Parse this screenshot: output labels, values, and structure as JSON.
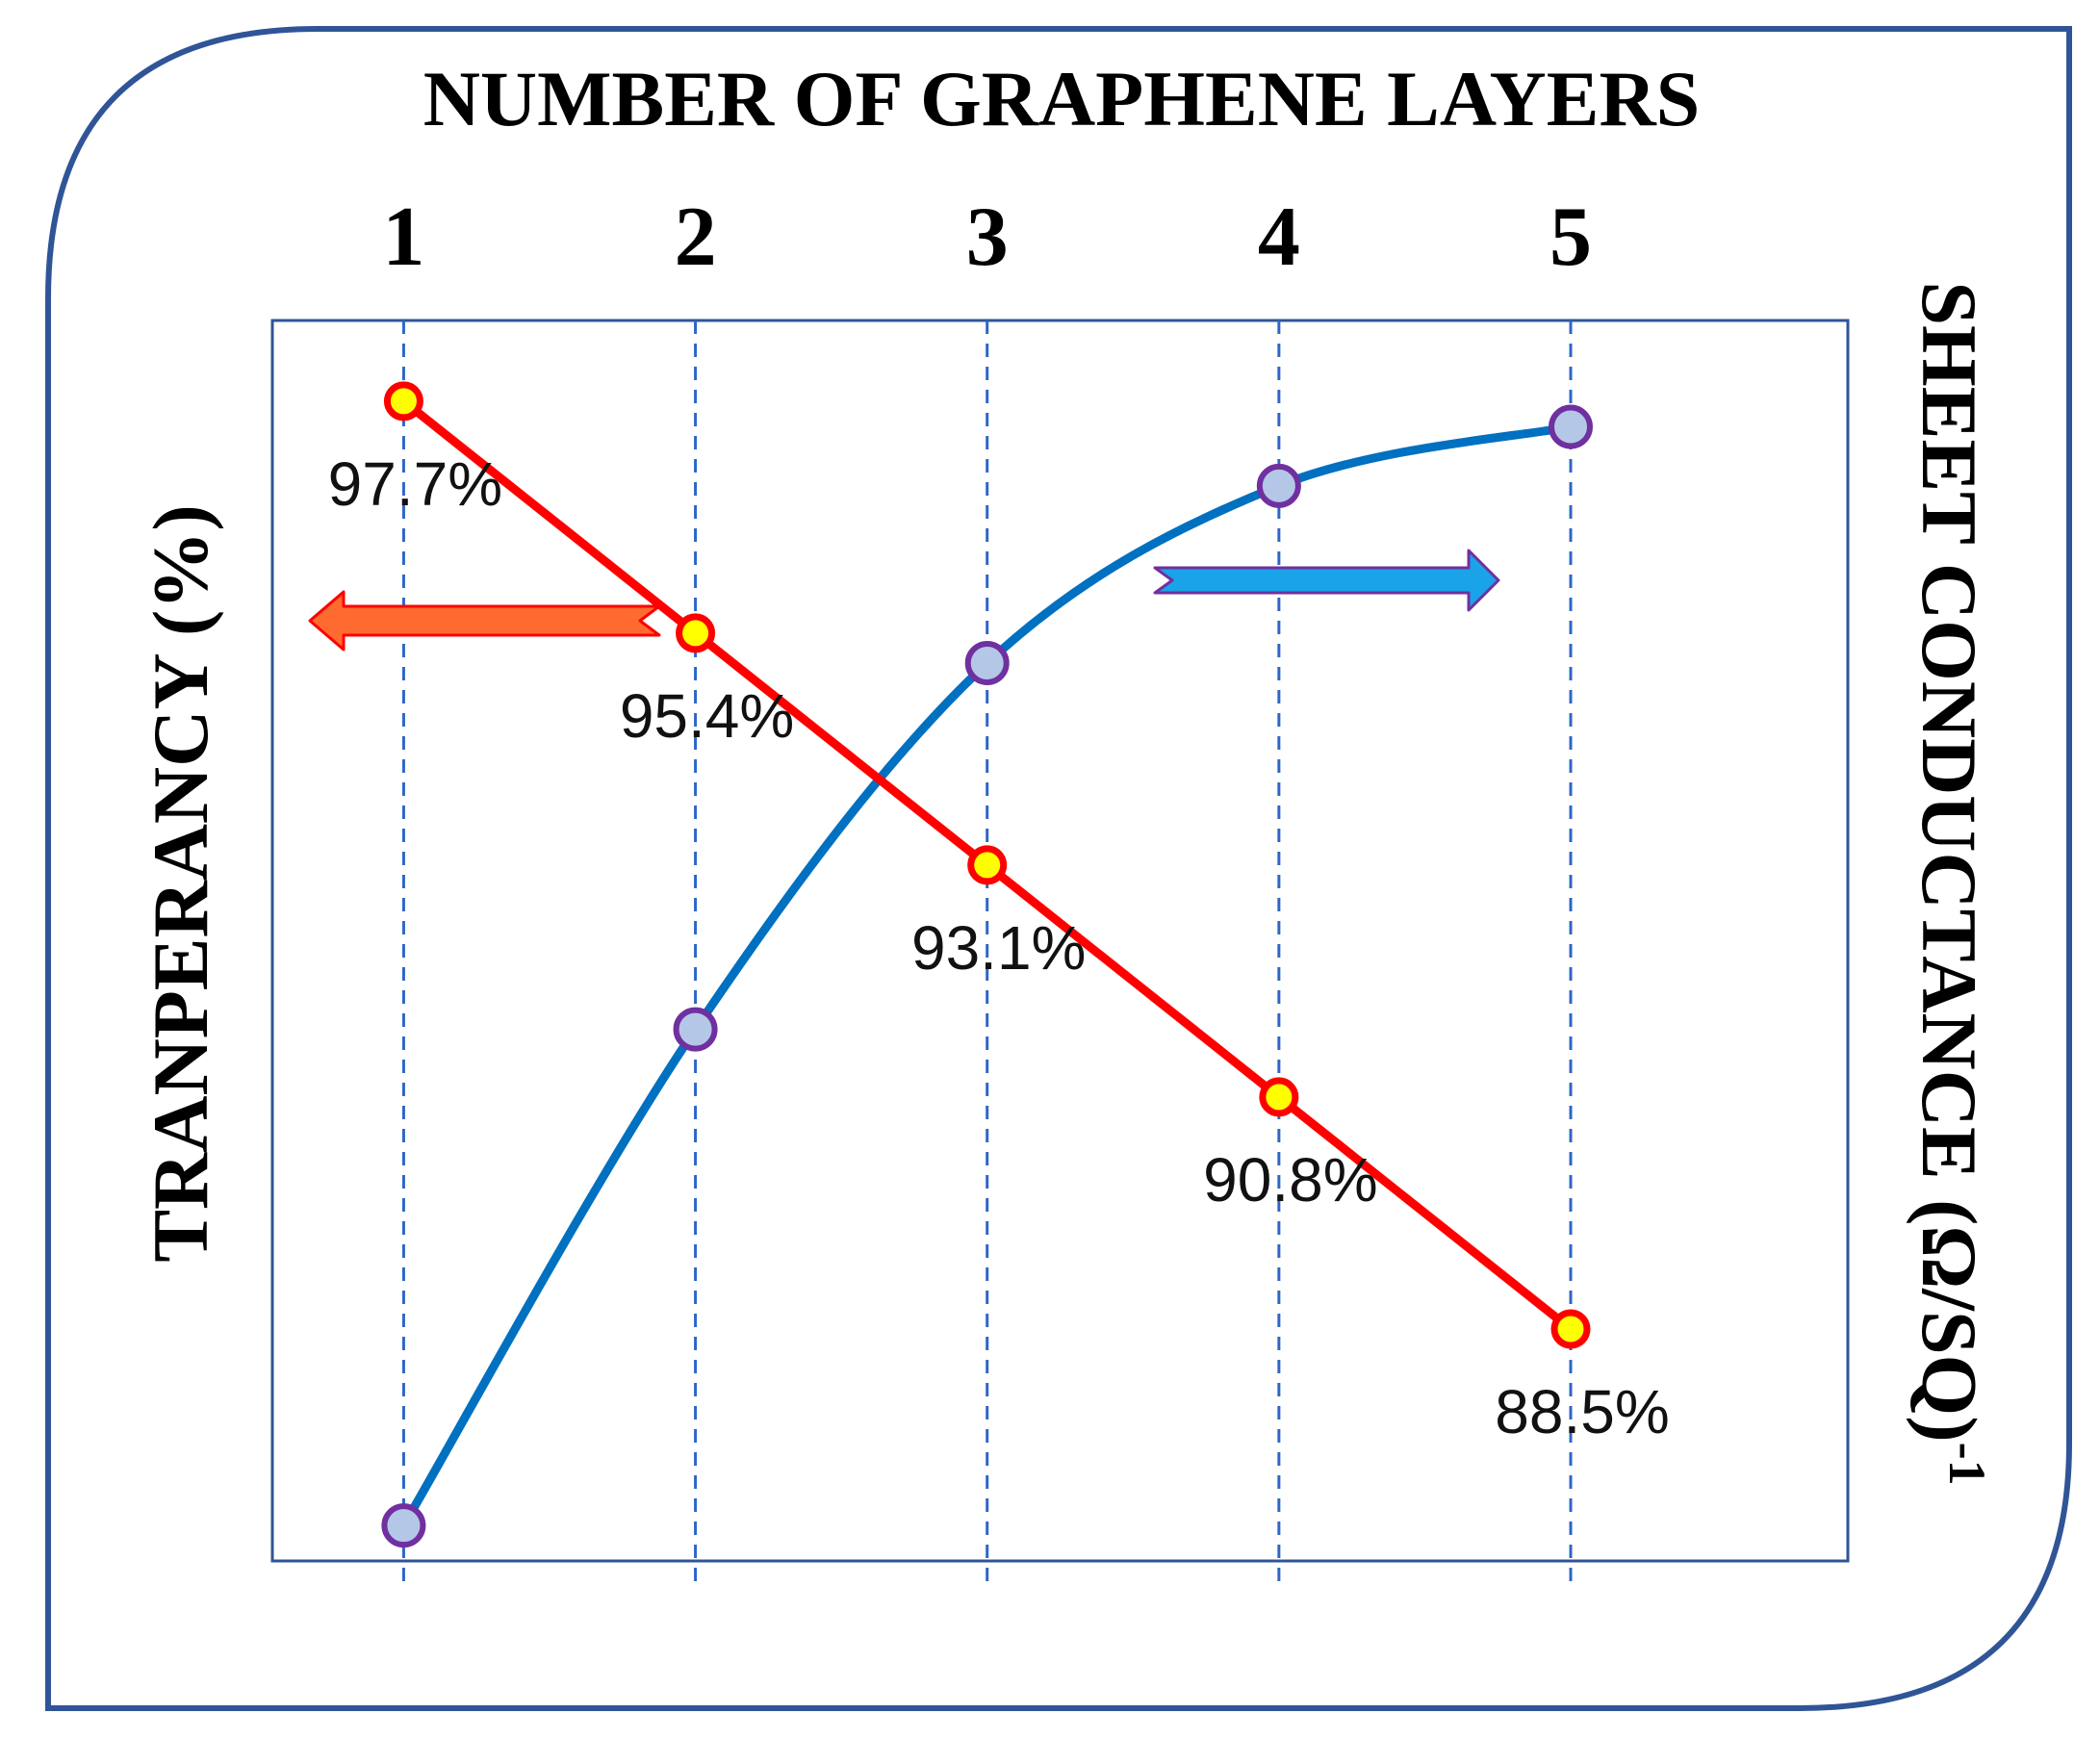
{
  "colors": {
    "frame": "#2f5597",
    "plot_border": "#2f5597",
    "gridline": "#2e66c8",
    "transparency_line": "#ff0000",
    "transparency_marker_fill": "#ffff00",
    "transparency_marker_stroke": "#ff0000",
    "conductance_line": "#0070c0",
    "conductance_marker_fill": "#b4c7e7",
    "conductance_marker_stroke": "#7030a0",
    "left_arrow_fill": "#ff6a30",
    "left_arrow_stroke": "#ff0000",
    "right_arrow_fill": "#1aa3e8",
    "right_arrow_stroke": "#7030a0"
  },
  "chart_data": {
    "type": "line",
    "title": "",
    "xlabel": "NUMBER OF GRAPHENE LAYERS",
    "ylabel_left": "TRANPERANCY (%)",
    "ylabel_right": "SHEET CONDUCTANCE (Ω/SQ)",
    "ylabel_right_superscript": "-1",
    "x": [
      1,
      2,
      3,
      4,
      5
    ],
    "xlim": [
      0.55,
      5.95
    ],
    "grid": "vertical dashed",
    "series": [
      {
        "axis": "left",
        "values": [
          97.7,
          95.4,
          93.1,
          90.8,
          88.5
        ],
        "labels": [
          "97.7%",
          "95.4%",
          "93.1%",
          "90.8%",
          "88.5%"
        ],
        "ylim": [
          86.2,
          98.5
        ],
        "curve": "straight"
      },
      {
        "axis": "right",
        "values": [
          0.03,
          0.45,
          0.76,
          0.91,
          0.96
        ],
        "ylim": [
          0,
          1.05
        ],
        "curve": "smooth"
      }
    ],
    "annotations": [
      {
        "type": "arrow",
        "direction": "left",
        "points_to": "left axis"
      },
      {
        "type": "arrow",
        "direction": "right",
        "points_to": "right axis"
      }
    ]
  }
}
